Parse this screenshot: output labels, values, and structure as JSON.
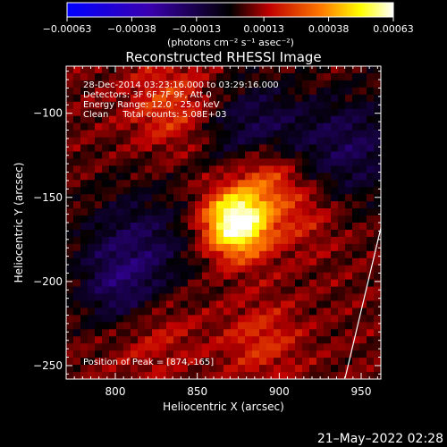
{
  "chart_data": {
    "type": "heatmap",
    "title": "Reconstructed RHESSI Image",
    "xlabel": "Heliocentric X (arcsec)",
    "ylabel": "Heliocentric Y (arcsec)",
    "xlim": [
      770,
      962
    ],
    "ylim": [
      -258,
      -72
    ],
    "x_ticks": [
      800,
      850,
      900,
      950
    ],
    "x_tick_labels": [
      "800",
      "850",
      "900",
      "950"
    ],
    "y_ticks": [
      -100,
      -150,
      -200,
      -250
    ],
    "y_tick_labels": [
      "−100",
      "−150",
      "−200",
      "−250"
    ],
    "colorbar": {
      "range": [
        -0.00063,
        0.00063
      ],
      "ticks": [
        -0.00063,
        -0.00038,
        -0.00013,
        0.00013,
        0.00038,
        0.00063
      ],
      "tick_labels": [
        "−0.00063",
        "−0.00038",
        "−0.00013",
        "0.00013",
        "0.00038",
        "0.00063"
      ],
      "unit_label": "(photons cm⁻² s⁻¹ asec⁻²)",
      "colormap": [
        "#0000ff",
        "#3a00b0",
        "#000000",
        "#c00000",
        "#ff7a00",
        "#ffff00",
        "#ffffff"
      ]
    },
    "peak": [
      874,
      -165
    ],
    "annotations": {
      "time": "28-Dec-2014 03:23:16.000 to 03:29:16.000",
      "detectors": "Detectors: 3F 6F 7F 9F, Att 0",
      "energy": "Energy Range: 12.0 - 25.0 keV",
      "method": "Clean     Total counts: 5.08E+03",
      "peak_text": "Position of Peak = [874,-165]"
    }
  },
  "footer": {
    "timestamp": "21–May–2022 02:28"
  }
}
